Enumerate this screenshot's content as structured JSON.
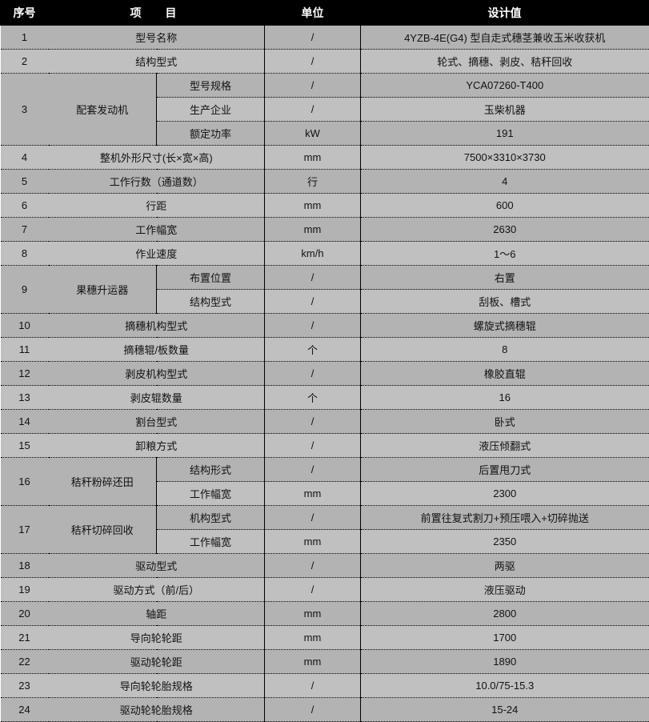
{
  "headers": {
    "serial": "序号",
    "item": "项　目",
    "unit": "单位",
    "value": "设计值"
  },
  "rows": [
    {
      "n": "1",
      "item": [
        "型号名称"
      ],
      "unit": "/",
      "val": "4YZB-4E(G4) 型自走式穗茎兼收玉米收获机"
    },
    {
      "n": "2",
      "item": [
        "结构型式"
      ],
      "unit": "/",
      "val": "轮式、摘穗、剥皮、秸秆回收"
    },
    {
      "n": "3",
      "group": "配套发动机",
      "gspan": 3,
      "sub": "型号规格",
      "unit": "/",
      "val": "YCA07260-T400"
    },
    {
      "sub": "生产企业",
      "unit": "/",
      "val": "玉柴机器"
    },
    {
      "sub": "额定功率",
      "unit": "kW",
      "val": "191"
    },
    {
      "n": "4",
      "item": [
        "整机外形尺寸(长×宽×高)"
      ],
      "unit": "mm",
      "val": "7500×3310×3730"
    },
    {
      "n": "5",
      "item": [
        "工作行数（通道数）"
      ],
      "unit": "行",
      "val": "4"
    },
    {
      "n": "6",
      "item": [
        "行距"
      ],
      "unit": "mm",
      "val": "600"
    },
    {
      "n": "7",
      "item": [
        "工作幅宽"
      ],
      "unit": "mm",
      "val": "2630"
    },
    {
      "n": "8",
      "item": [
        "作业速度"
      ],
      "unit": "km/h",
      "val": "1～6"
    },
    {
      "n": "9",
      "group": "果穗升运器",
      "gspan": 2,
      "sub": "布置位置",
      "unit": "/",
      "val": "右置"
    },
    {
      "sub": "结构型式",
      "unit": "/",
      "val": "刮板、槽式"
    },
    {
      "n": "10",
      "item": [
        "摘穗机构型式"
      ],
      "unit": "/",
      "val": "螺旋式摘穗辊"
    },
    {
      "n": "11",
      "item": [
        "摘穗辊/板数量"
      ],
      "unit": "个",
      "val": "8"
    },
    {
      "n": "12",
      "item": [
        "剥皮机构型式"
      ],
      "unit": "/",
      "val": "橡胶直辊"
    },
    {
      "n": "13",
      "item": [
        "剥皮辊数量"
      ],
      "unit": "个",
      "val": "16"
    },
    {
      "n": "14",
      "item": [
        "割台型式"
      ],
      "unit": "/",
      "val": "卧式"
    },
    {
      "n": "15",
      "item": [
        "卸粮方式"
      ],
      "unit": "/",
      "val": "液压倾翻式"
    },
    {
      "n": "16",
      "group": "秸秆粉碎还田",
      "gspan": 2,
      "sub": "结构形式",
      "unit": "/",
      "val": "后置甩刀式"
    },
    {
      "sub": "工作幅宽",
      "unit": "mm",
      "val": "2300"
    },
    {
      "n": "17",
      "group": "秸秆切碎回收",
      "gspan": 2,
      "sub": "机构型式",
      "unit": "/",
      "val": "前置往复式割刀+预压喂入+切碎抛送"
    },
    {
      "sub": "工作幅宽",
      "unit": "mm",
      "val": "2350"
    },
    {
      "n": "18",
      "item": [
        "驱动型式"
      ],
      "unit": "/",
      "val": "两驱"
    },
    {
      "n": "19",
      "item": [
        "驱动方式（前/后）"
      ],
      "unit": "/",
      "val": "液压驱动"
    },
    {
      "n": "20",
      "item": [
        "轴距"
      ],
      "unit": "mm",
      "val": "2800"
    },
    {
      "n": "21",
      "item": [
        "导向轮轮距"
      ],
      "unit": "mm",
      "val": "1700"
    },
    {
      "n": "22",
      "item": [
        "驱动轮轮距"
      ],
      "unit": "mm",
      "val": "1890"
    },
    {
      "n": "23",
      "item": [
        "导向轮轮胎规格"
      ],
      "unit": "/",
      "val": "10.0/75-15.3"
    },
    {
      "n": "24",
      "item": [
        "驱动轮轮胎规格"
      ],
      "unit": "/",
      "val": "15-24"
    }
  ]
}
